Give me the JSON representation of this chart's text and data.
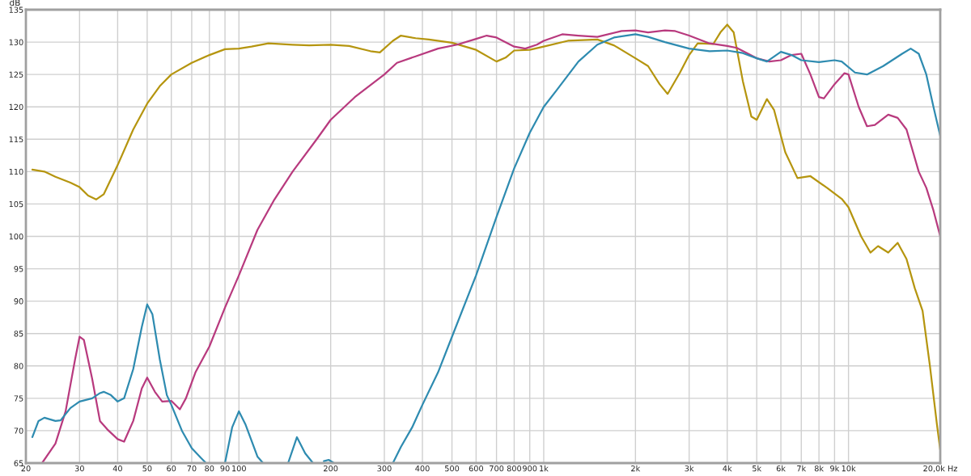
{
  "chart_data": {
    "type": "line",
    "ylabel": "dB",
    "log": "x",
    "grid": true,
    "marker": "none",
    "line_style": "solid",
    "xlim": [
      20,
      20000
    ],
    "ylim": [
      65,
      135
    ],
    "xticks": [
      20,
      30,
      40,
      50,
      60,
      70,
      80,
      90,
      100,
      200,
      300,
      400,
      500,
      600,
      700,
      800,
      900,
      {
        "value": 1000,
        "label": "1k"
      },
      {
        "value": 2000,
        "label": "2k"
      },
      {
        "value": 3000,
        "label": "3k"
      },
      {
        "value": 4000,
        "label": "4k"
      },
      {
        "value": 5000,
        "label": "5k"
      },
      {
        "value": 6000,
        "label": "6k"
      },
      {
        "value": 7000,
        "label": "7k"
      },
      {
        "value": 8000,
        "label": "8k"
      },
      {
        "value": 9000,
        "label": "9k"
      },
      {
        "value": 10000,
        "label": "10k"
      },
      {
        "value": 20000,
        "label": "20,0k Hz"
      }
    ],
    "yticks": [
      65,
      70,
      75,
      80,
      85,
      90,
      95,
      100,
      105,
      110,
      115,
      120,
      125,
      130,
      135
    ],
    "series": [
      {
        "color": "#b5950f",
        "x": [
          21,
          23,
          25,
          28,
          30,
          32,
          34,
          36,
          40,
          45,
          50,
          55,
          60,
          70,
          80,
          90,
          100,
          110,
          125,
          150,
          170,
          200,
          230,
          270,
          290,
          320,
          340,
          380,
          420,
          500,
          600,
          700,
          750,
          800,
          900,
          1000,
          1200,
          1500,
          1700,
          2000,
          2200,
          2400,
          2550,
          2800,
          3000,
          3200,
          3600,
          3800,
          4000,
          4200,
          4500,
          4800,
          5000,
          5400,
          5700,
          6200,
          6800,
          7500,
          8500,
          9500,
          10000,
          11000,
          11800,
          12500,
          13500,
          14500,
          15500,
          16500,
          17500,
          18500,
          19500,
          20000
        ],
        "values": [
          110.3,
          110,
          109.2,
          108.3,
          107.6,
          106.3,
          105.7,
          106.5,
          111,
          116.5,
          120.5,
          123.2,
          125,
          126.8,
          128,
          128.9,
          129,
          129.3,
          129.8,
          129.6,
          129.5,
          129.6,
          129.4,
          128.6,
          128.4,
          130.2,
          131,
          130.6,
          130.4,
          129.9,
          128.8,
          127,
          127.6,
          128.7,
          128.8,
          129.3,
          130.2,
          130.4,
          129.5,
          127.5,
          126.3,
          123.5,
          122,
          125.3,
          128,
          129.8,
          129.7,
          131.5,
          132.7,
          131.5,
          124,
          118.5,
          118,
          121.2,
          119.5,
          113,
          109,
          109.3,
          107.5,
          105.8,
          104.5,
          100,
          97.5,
          98.5,
          97.5,
          99,
          96.5,
          92,
          88.5,
          80,
          71,
          67
        ]
      },
      {
        "color": "#b83a7e",
        "x": [
          22.6,
          25,
          27,
          29,
          30,
          31,
          33,
          35,
          37,
          40,
          42,
          45,
          48,
          50,
          53,
          56,
          60,
          64,
          67,
          72,
          80,
          90,
          100,
          115,
          130,
          150,
          180,
          200,
          240,
          300,
          330,
          380,
          450,
          520,
          600,
          650,
          700,
          800,
          870,
          950,
          1000,
          1150,
          1300,
          1500,
          1800,
          2000,
          2200,
          2500,
          2700,
          3000,
          3500,
          4000,
          4300,
          5000,
          5500,
          6000,
          6500,
          7000,
          7500,
          8000,
          8300,
          9000,
          9700,
          10000,
          10800,
          11500,
          12200,
          13500,
          14500,
          15500,
          17000,
          18000,
          19000,
          20000
        ],
        "values": [
          65,
          68,
          73,
          81,
          84.5,
          84,
          78,
          71.5,
          70.2,
          68.7,
          68.3,
          71.5,
          76.5,
          78.2,
          76,
          74.5,
          74.6,
          73.3,
          75,
          79,
          83,
          89,
          94,
          101,
          105.5,
          110,
          115,
          118,
          121.5,
          125,
          126.8,
          127.8,
          129,
          129.6,
          130.5,
          131,
          130.7,
          129.3,
          129,
          129.6,
          130.2,
          131.2,
          131,
          130.8,
          131.7,
          131.8,
          131.5,
          131.8,
          131.7,
          131,
          129.8,
          129.4,
          129.1,
          127.5,
          127,
          127.2,
          128,
          128.2,
          125,
          121.5,
          121.3,
          123.5,
          125.2,
          125,
          120,
          117,
          117.2,
          118.8,
          118.3,
          116.5,
          110,
          107.5,
          104,
          100
        ]
      },
      {
        "color": "#2e8bb0",
        "x": [
          21,
          22,
          23,
          25,
          26,
          28,
          30,
          33,
          35,
          36,
          38,
          40,
          42,
          45,
          48,
          50,
          52,
          55,
          58,
          60,
          65,
          70,
          75,
          78,
          84,
          90,
          95,
          100,
          105,
          115,
          120,
          132,
          145,
          155,
          165,
          175,
          183,
          190,
          197,
          205,
          260,
          320,
          340,
          370,
          400,
          450,
          500,
          600,
          700,
          800,
          900,
          1000,
          1100,
          1300,
          1500,
          1700,
          2000,
          2200,
          2500,
          3000,
          3500,
          4000,
          4500,
          5000,
          5400,
          6000,
          6500,
          7000,
          8000,
          9000,
          9500,
          10500,
          11500,
          13000,
          15000,
          16000,
          17000,
          18000,
          19000,
          20000
        ],
        "values": [
          69,
          71.5,
          72,
          71.5,
          71.6,
          73.5,
          74.5,
          75,
          75.8,
          76,
          75.5,
          74.5,
          75,
          79.5,
          86,
          89.5,
          88,
          81,
          75.5,
          74,
          70,
          67.3,
          65.8,
          65,
          null,
          65,
          70.5,
          73,
          71,
          66,
          65,
          null,
          65,
          69,
          66.5,
          65,
          null,
          65.3,
          65.5,
          65,
          null,
          65,
          67.5,
          70.5,
          74,
          79,
          84.5,
          94,
          103,
          110.5,
          116,
          120,
          122.5,
          127,
          129.6,
          130.7,
          131.2,
          130.8,
          130,
          129,
          128.6,
          128.7,
          128.3,
          127.5,
          127,
          128.5,
          128,
          127.2,
          126.9,
          127.2,
          127,
          125.3,
          125,
          126.3,
          128.2,
          129,
          128.2,
          125,
          120,
          115.5
        ]
      }
    ]
  }
}
